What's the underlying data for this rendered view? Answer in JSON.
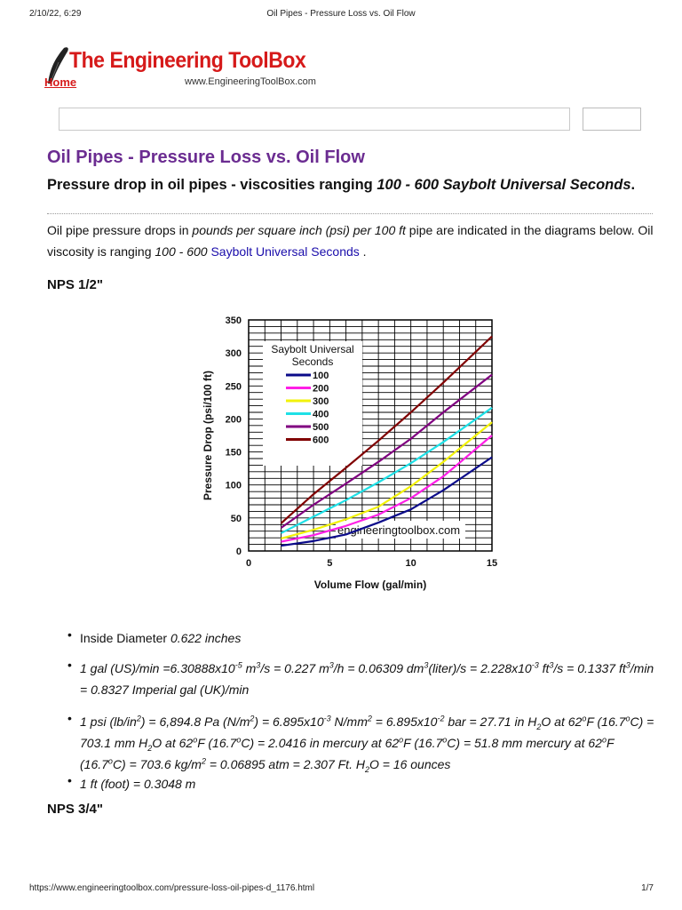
{
  "print_header": {
    "datetime": "2/10/22, 6:29",
    "page_title": "Oil Pipes - Pressure Loss vs. Oil Flow"
  },
  "print_footer": {
    "url": "https://www.engineeringtoolbox.com/pressure-loss-oil-pipes-d_1176.html",
    "page": "1/7"
  },
  "site": {
    "title": "The Engineering ToolBox",
    "home_link": "Home",
    "url": "www.EngineeringToolBox.com"
  },
  "search": {
    "placeholder": "",
    "button_label": ""
  },
  "article": {
    "title": "Oil Pipes - Pressure Loss vs. Oil Flow",
    "subtitle_plain": "Pressure drop in oil pipes - viscosities ranging ",
    "subtitle_italic": "100 - 600 Saybolt Universal Seconds",
    "subtitle_end": ".",
    "intro_1": "Oil pipe pressure drops in ",
    "intro_2": "pounds per square inch (psi) per 100 ft",
    "intro_3": " pipe are indicated in the diagrams below. Oil viscosity is ranging ",
    "intro_4": "100 - 600 ",
    "intro_link": "Saybolt Universal Seconds",
    "intro_5": " .",
    "section_1": "NPS 1/2\"",
    "section_2": "NPS 3/4\""
  },
  "bullets": {
    "b1_label": "Inside Diameter ",
    "b1_value": "0.622 inches",
    "b4": "1 ft (foot) = 0.3048 m"
  },
  "chart_data": {
    "type": "line",
    "title": "",
    "xlabel": "Volume Flow (gal/min)",
    "ylabel": "Pressure Drop (psi/100 ft)",
    "xlim": [
      0,
      15
    ],
    "ylim": [
      0,
      350
    ],
    "xticks": [
      0,
      5,
      10,
      15
    ],
    "yticks": [
      0,
      50,
      100,
      150,
      200,
      250,
      300,
      350
    ],
    "grid": true,
    "legend_title": "Saybolt Universal Seconds",
    "legend_placement": "top-left",
    "watermark": "engineeringtoolbox.com",
    "x": [
      2,
      4,
      6,
      8,
      10,
      12,
      15
    ],
    "series": [
      {
        "name": "100",
        "color": "#0b0b8a",
        "values": [
          8,
          15,
          25,
          43,
          63,
          92,
          142
        ]
      },
      {
        "name": "200",
        "color": "#ff1ee6",
        "values": [
          14,
          24,
          38,
          55,
          80,
          113,
          175
        ]
      },
      {
        "name": "300",
        "color": "#f2f20a",
        "values": [
          19,
          32,
          48,
          67,
          98,
          135,
          195
        ]
      },
      {
        "name": "400",
        "color": "#1ee0e6",
        "values": [
          27,
          52,
          77,
          104,
          133,
          165,
          217
        ]
      },
      {
        "name": "500",
        "color": "#800080",
        "values": [
          35,
          70,
          102,
          135,
          170,
          210,
          267
        ]
      },
      {
        "name": "600",
        "color": "#800000",
        "values": [
          42,
          86,
          126,
          167,
          210,
          255,
          325
        ]
      }
    ]
  }
}
